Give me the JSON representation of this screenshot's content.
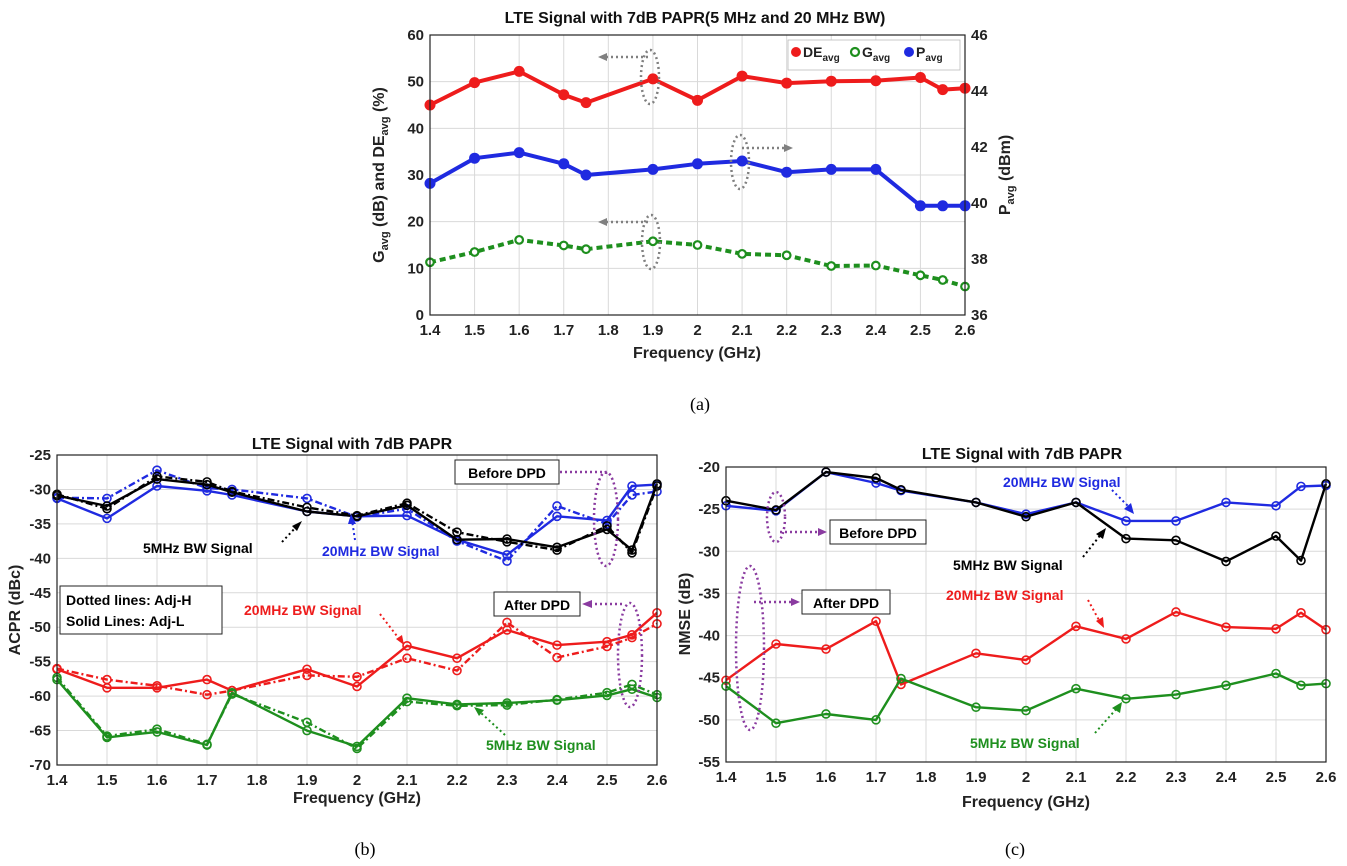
{
  "captions": {
    "a": "(a)",
    "b": "(b)",
    "c": "(c)"
  },
  "colors": {
    "red": "#ee1c1c",
    "green": "#1e8f1e",
    "blue": "#1f2ae0",
    "black": "#000000",
    "gray": "#808080",
    "purple": "#8a3ba0"
  },
  "chart_data": [
    {
      "type": "line",
      "title": "LTE Signal with 7dB PAPR(5 MHz and 20 MHz BW)",
      "xlabel": "Frequency (GHz)",
      "ylabel_left": "G_avg (dB) and DE_avg (%)",
      "ylabel_right": "P_avg (dBm)",
      "xlim": [
        1.4,
        2.6
      ],
      "ylim": [
        0,
        60
      ],
      "ylim_right": [
        36,
        46
      ],
      "xticks": [
        "1.4",
        "1.5",
        "1.6",
        "1.7",
        "1.8",
        "1.9",
        "2",
        "2.1",
        "2.2",
        "2.3",
        "2.4",
        "2.5",
        "2.6"
      ],
      "yticks": [
        "0",
        "10",
        "20",
        "30",
        "40",
        "50",
        "60"
      ],
      "yticks_right": [
        "36",
        "38",
        "40",
        "42",
        "44",
        "46"
      ],
      "legend": [
        {
          "label": "DE",
          "sub": "avg",
          "color": "#ee1c1c"
        },
        {
          "label": "G",
          "sub": "avg",
          "color": "#1e8f1e"
        },
        {
          "label": "P",
          "sub": "avg",
          "color": "#1f2ae0"
        }
      ],
      "legend_position": "top-right",
      "grid": true,
      "series": [
        {
          "name": "DE_avg",
          "axis": "left",
          "color": "#ee1c1c",
          "dash": "",
          "marker": "dot",
          "x": [
            1.4,
            1.5,
            1.6,
            1.7,
            1.75,
            1.9,
            2.0,
            2.1,
            2.2,
            2.3,
            2.4,
            2.5,
            2.55,
            2.6
          ],
          "values": [
            45,
            49.8,
            52.2,
            47.2,
            45.5,
            50.6,
            46,
            51.2,
            49.7,
            50.1,
            50.2,
            50.9,
            48.3,
            48.6
          ]
        },
        {
          "name": "G_avg",
          "axis": "left",
          "color": "#1e8f1e",
          "dash": "6,4",
          "marker": "ring",
          "x": [
            1.4,
            1.5,
            1.6,
            1.7,
            1.75,
            1.9,
            2.0,
            2.1,
            2.2,
            2.3,
            2.4,
            2.5,
            2.55,
            2.6
          ],
          "values": [
            11.3,
            13.5,
            16.1,
            14.9,
            14.1,
            15.8,
            15,
            13.1,
            12.8,
            10.5,
            10.6,
            8.5,
            7.5,
            6.1
          ]
        },
        {
          "name": "P_avg",
          "axis": "right",
          "color": "#1f2ae0",
          "dash": "",
          "marker": "dot",
          "x": [
            1.4,
            1.5,
            1.6,
            1.7,
            1.75,
            1.9,
            2.0,
            2.1,
            2.2,
            2.3,
            2.4,
            2.5,
            2.55,
            2.6
          ],
          "values": [
            40.7,
            41.6,
            41.8,
            41.4,
            41.0,
            41.2,
            41.4,
            41.5,
            41.1,
            41.2,
            41.2,
            39.9,
            39.9,
            39.9
          ]
        }
      ]
    },
    {
      "type": "line",
      "title": "LTE Signal with 7dB PAPR",
      "xlabel": "Frequency (GHz)",
      "ylabel": "ACPR (dBc)",
      "xlim": [
        1.4,
        2.6
      ],
      "ylim": [
        -70,
        -25
      ],
      "xticks": [
        "1.4",
        "1.5",
        "1.6",
        "1.7",
        "1.8",
        "1.9",
        "2",
        "2.1",
        "2.2",
        "2.3",
        "2.4",
        "2.5",
        "2.6"
      ],
      "yticks": [
        "-70",
        "-65",
        "-60",
        "-55",
        "-50",
        "-45",
        "-40",
        "-35",
        "-30",
        "-25"
      ],
      "grid": true,
      "series": [
        {
          "name": "20MHz BW Signal Adj-L (Before DPD)",
          "color": "#1f2ae0",
          "dash": "",
          "x": [
            1.4,
            1.5,
            1.6,
            1.7,
            1.75,
            1.9,
            2.0,
            2.1,
            2.2,
            2.3,
            2.4,
            2.5,
            2.55,
            2.6
          ],
          "values": [
            -31.3,
            -34.2,
            -29.5,
            -30.2,
            -30.8,
            -33.2,
            -33.9,
            -33.8,
            -37.3,
            -39.5,
            -33.9,
            -34.5,
            -29.5,
            -29.3
          ]
        },
        {
          "name": "20MHz BW Signal Adj-H (Before DPD)",
          "color": "#1f2ae0",
          "dash": "7,3,2,3",
          "x": [
            1.4,
            1.5,
            1.6,
            1.7,
            1.75,
            1.9,
            2.0,
            2.1,
            2.2,
            2.3,
            2.4,
            2.5,
            2.55,
            2.6
          ],
          "values": [
            -31.2,
            -31.3,
            -27.2,
            -29.8,
            -30.0,
            -31.3,
            -34.0,
            -32.8,
            -37.5,
            -40.4,
            -32.4,
            -35.0,
            -30.8,
            -30.3
          ]
        },
        {
          "name": "5MHz BW Signal Adj-L (Before DPD)",
          "color": "#000000",
          "dash": "",
          "x": [
            1.4,
            1.5,
            1.6,
            1.7,
            1.75,
            1.9,
            2.0,
            2.1,
            2.2,
            2.3,
            2.4,
            2.5,
            2.55,
            2.6
          ],
          "values": [
            -30.9,
            -32.4,
            -28.5,
            -29.3,
            -30.4,
            -33.2,
            -33.9,
            -32.3,
            -37.3,
            -37.2,
            -38.4,
            -35.8,
            -38.8,
            -29.2
          ]
        },
        {
          "name": "5MHz BW Signal Adj-H (Before DPD)",
          "color": "#000000",
          "dash": "7,3,2,3",
          "x": [
            1.4,
            1.5,
            1.6,
            1.7,
            1.75,
            1.9,
            2.0,
            2.1,
            2.2,
            2.3,
            2.4,
            2.5,
            2.55,
            2.6
          ],
          "values": [
            -30.7,
            -32.8,
            -28.1,
            -28.9,
            -30.3,
            -32.6,
            -33.8,
            -32.0,
            -36.2,
            -37.6,
            -38.8,
            -35.3,
            -39.2,
            -29.5
          ]
        },
        {
          "name": "20MHz BW Signal Adj-L (After DPD)",
          "color": "#ee1c1c",
          "dash": "",
          "x": [
            1.4,
            1.5,
            1.6,
            1.7,
            1.75,
            1.9,
            2.0,
            2.1,
            2.2,
            2.3,
            2.4,
            2.5,
            2.55,
            2.6
          ],
          "values": [
            -56.1,
            -58.8,
            -58.8,
            -57.6,
            -59.2,
            -56.1,
            -58.6,
            -52.7,
            -54.5,
            -50.4,
            -52.6,
            -52.1,
            -51.1,
            -47.9
          ]
        },
        {
          "name": "20MHz BW Signal Adj-H (After DPD)",
          "color": "#ee1c1c",
          "dash": "7,3,2,3",
          "x": [
            1.4,
            1.5,
            1.6,
            1.7,
            1.75,
            1.9,
            2.0,
            2.1,
            2.2,
            2.3,
            2.4,
            2.5,
            2.55,
            2.6
          ],
          "values": [
            -56.0,
            -57.6,
            -58.5,
            -59.8,
            -59.2,
            -57.0,
            -57.2,
            -54.5,
            -56.3,
            -49.3,
            -54.4,
            -52.8,
            -51.5,
            -49.5
          ]
        },
        {
          "name": "5MHz BW Signal Adj-L (After DPD)",
          "color": "#1e8f1e",
          "dash": "",
          "x": [
            1.4,
            1.5,
            1.6,
            1.7,
            1.75,
            1.9,
            2.0,
            2.1,
            2.2,
            2.3,
            2.4,
            2.5,
            2.55,
            2.6
          ],
          "values": [
            -57.6,
            -66.0,
            -65.2,
            -67.1,
            -59.5,
            -65.0,
            -67.3,
            -60.3,
            -61.2,
            -61.0,
            -60.6,
            -59.9,
            -59.0,
            -60.2
          ]
        },
        {
          "name": "5MHz BW Signal Adj-H (After DPD)",
          "color": "#1e8f1e",
          "dash": "7,3,2,3",
          "x": [
            1.4,
            1.5,
            1.6,
            1.7,
            1.75,
            1.9,
            2.0,
            2.1,
            2.2,
            2.3,
            2.4,
            2.5,
            2.55,
            2.6
          ],
          "values": [
            -57.3,
            -65.8,
            -64.8,
            -67.0,
            -59.7,
            -63.8,
            -67.6,
            -60.8,
            -61.4,
            -61.3,
            -60.5,
            -59.5,
            -58.3,
            -59.8
          ]
        }
      ],
      "annotations": {
        "before_dpd": "Before DPD",
        "after_dpd": "After DPD",
        "legend_line1": "Dotted lines: Adj-H",
        "legend_line2": "Solid Lines: Adj-L",
        "label_5mhz_top": "5MHz BW Signal",
        "label_20mhz_top": "20MHz BW Signal",
        "label_20mhz_bottom": "20MHz BW Signal",
        "label_5mhz_bottom": "5MHz BW Signal"
      }
    },
    {
      "type": "line",
      "title": "LTE Signal with 7dB PAPR",
      "xlabel": "Frequency (GHz)",
      "ylabel": "NMSE (dB)",
      "xlim": [
        1.4,
        2.6
      ],
      "ylim": [
        -55,
        -20
      ],
      "xticks": [
        "1.4",
        "1.5",
        "1.6",
        "1.7",
        "1.8",
        "1.9",
        "2",
        "2.1",
        "2.2",
        "2.3",
        "2.4",
        "2.5",
        "2.6"
      ],
      "yticks": [
        "-55",
        "-50",
        "-45",
        "-40",
        "-35",
        "-30",
        "-25",
        "-20"
      ],
      "grid": true,
      "series": [
        {
          "name": "20MHz BW Signal (Before DPD)",
          "color": "#1f2ae0",
          "dash": "",
          "x": [
            1.4,
            1.5,
            1.6,
            1.7,
            1.75,
            1.9,
            2.0,
            2.1,
            2.2,
            2.3,
            2.4,
            2.5,
            2.55,
            2.6
          ],
          "values": [
            -24.6,
            -25.2,
            -20.6,
            -21.9,
            -22.8,
            -24.2,
            -25.6,
            -24.2,
            -26.4,
            -26.4,
            -24.2,
            -24.6,
            -22.3,
            -22.2
          ]
        },
        {
          "name": "5MHz BW Signal (Before DPD)",
          "color": "#000000",
          "dash": "",
          "x": [
            1.4,
            1.5,
            1.6,
            1.7,
            1.75,
            1.9,
            2.0,
            2.1,
            2.2,
            2.3,
            2.4,
            2.5,
            2.55,
            2.6
          ],
          "values": [
            -24.0,
            -25.1,
            -20.6,
            -21.3,
            -22.7,
            -24.2,
            -25.9,
            -24.2,
            -28.5,
            -28.7,
            -31.2,
            -28.2,
            -31.1,
            -22.0
          ]
        },
        {
          "name": "20MHz BW Signal (After DPD)",
          "color": "#ee1c1c",
          "dash": "",
          "x": [
            1.4,
            1.5,
            1.6,
            1.7,
            1.75,
            1.9,
            2.0,
            2.1,
            2.2,
            2.3,
            2.4,
            2.5,
            2.55,
            2.6
          ],
          "values": [
            -45.3,
            -41.0,
            -41.6,
            -38.3,
            -45.8,
            -42.1,
            -42.9,
            -38.9,
            -40.4,
            -37.2,
            -39.0,
            -39.2,
            -37.3,
            -39.3
          ]
        },
        {
          "name": "5MHz BW Signal (After DPD)",
          "color": "#1e8f1e",
          "dash": "",
          "x": [
            1.4,
            1.5,
            1.6,
            1.7,
            1.75,
            1.9,
            2.0,
            2.1,
            2.2,
            2.3,
            2.4,
            2.5,
            2.55,
            2.6
          ],
          "values": [
            -46.0,
            -50.4,
            -49.3,
            -50.0,
            -45.1,
            -48.5,
            -48.9,
            -46.3,
            -47.5,
            -47.0,
            -45.9,
            -44.5,
            -45.9,
            -45.7
          ]
        }
      ],
      "annotations": {
        "label_20mhz_top": "20MHz BW Signal",
        "before_dpd": "Before DPD",
        "label_5mhz_top": "5MHz BW Signal",
        "after_dpd": "After DPD",
        "label_20mhz_bottom": "20MHz BW Signal",
        "label_5mhz_bottom": "5MHz BW Signal"
      }
    }
  ]
}
